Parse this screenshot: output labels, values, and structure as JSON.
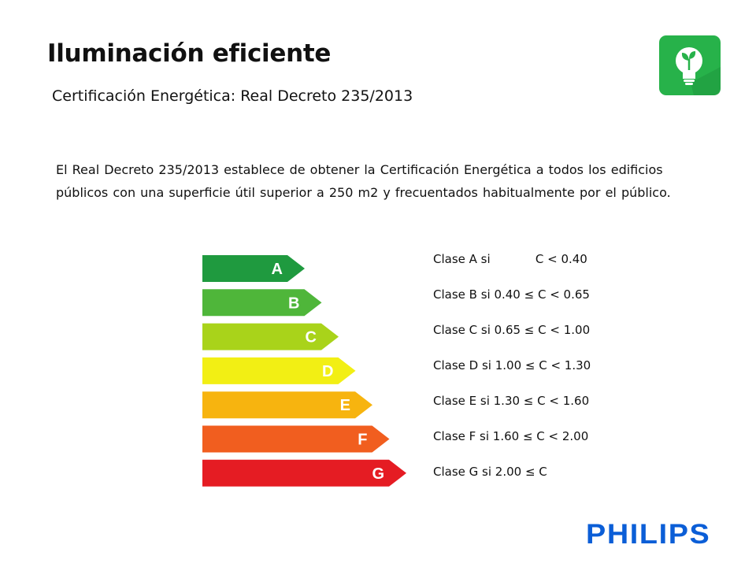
{
  "header": {
    "title": "Iluminación eficiente",
    "subtitle": "Certificación Energética: Real Decreto 235/2013"
  },
  "body": {
    "text_line1": "El Real Decreto 235/2013 establece de obtener la Certificación Energética a todos los edificios",
    "text_line2": "públicos con una superficie útil superior a 250 m2 y frecuentados habitualmente por el público."
  },
  "energy_label": {
    "classes": [
      {
        "letter": "A",
        "color": "#1f9a3f"
      },
      {
        "letter": "B",
        "color": "#4fb63a"
      },
      {
        "letter": "C",
        "color": "#a9d31a"
      },
      {
        "letter": "D",
        "color": "#f2ef14"
      },
      {
        "letter": "E",
        "color": "#f7b40f"
      },
      {
        "letter": "F",
        "color": "#f15e1f"
      },
      {
        "letter": "G",
        "color": "#e51c23"
      }
    ]
  },
  "class_list": [
    "Clase A si            C < 0.40",
    "Clase B si 0.40 ≤ C < 0.65",
    "Clase C si 0.65 ≤ C < 1.00",
    "Clase D si 1.00 ≤ C < 1.30",
    "Clase E si 1.30 ≤ C < 1.60",
    "Clase F si 1.60 ≤ C < 2.00",
    "Clase G si 2.00 ≤ C"
  ],
  "icon": {
    "name": "lightbulb-leaf-icon",
    "color": "#27b24a"
  },
  "footer": {
    "logo_text": "PHILIPS",
    "logo_color": "#0b5ed7"
  }
}
